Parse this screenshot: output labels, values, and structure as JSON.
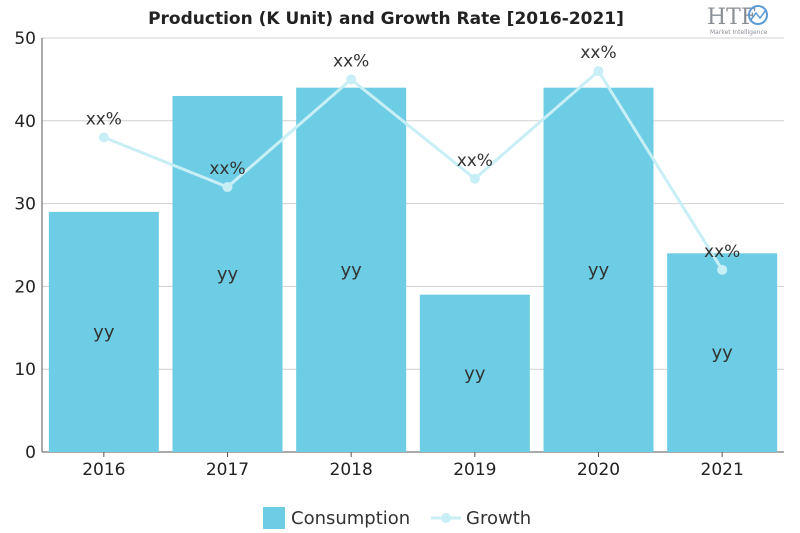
{
  "chart_data": {
    "type": "bar",
    "title": "Production (K Unit) and Growth Rate [2016-2021]",
    "categories": [
      "2016",
      "2017",
      "2018",
      "2019",
      "2020",
      "2021"
    ],
    "series": [
      {
        "name": "Consumption",
        "kind": "bar",
        "color": "#6dcde5",
        "values": [
          29,
          43,
          44,
          19,
          44,
          24
        ],
        "labels": [
          "yy",
          "yy",
          "yy",
          "yy",
          "yy",
          "yy"
        ]
      },
      {
        "name": "Growth",
        "kind": "line",
        "color": "#c8eef6",
        "values": [
          38,
          32,
          45,
          33,
          46,
          22
        ],
        "labels": [
          "xx%",
          "xx%",
          "xx%",
          "xx%",
          "xx%",
          "xx%"
        ]
      }
    ],
    "ylim": [
      0,
      50
    ],
    "yticks": [
      0,
      10,
      20,
      30,
      40,
      50
    ],
    "xlabel": "",
    "ylabel": "",
    "grid": true,
    "legend": "bottom-center"
  },
  "logo": {
    "text": "HTF",
    "subtext": "Market Intelligence"
  }
}
